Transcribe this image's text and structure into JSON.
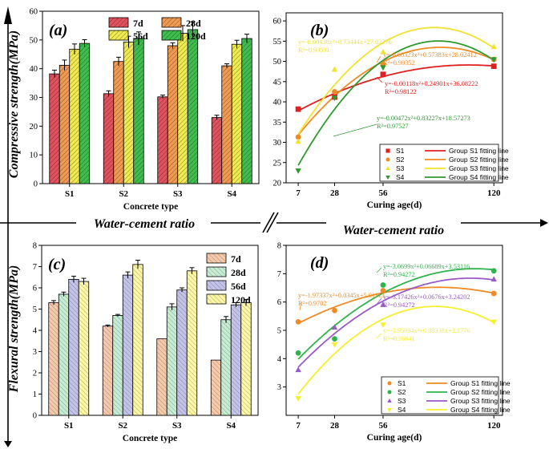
{
  "left_labels": {
    "top": "Compressive strength(MPa)",
    "bottom": "Flexural strength(MPa)"
  },
  "divider": {
    "left_label": "Water-cement ratio",
    "right_label": "Water-cement ratio"
  },
  "colors": {
    "d7": "#e0525e",
    "d28": "#f09a52",
    "d56": "#eeea50",
    "d120": "#3fbd4e",
    "c_d7": "#f6c9aa",
    "c_d28": "#c6ecd4",
    "c_d56": "#c3c3ea",
    "c_d120": "#fdf7a6",
    "b_S1": "#e02020",
    "b_S2": "#f08a24",
    "b_S3": "#f2e22e",
    "b_S4": "#2e9a2e",
    "d_S1": "#f08a24",
    "d_S2": "#2eb44a",
    "d_S3": "#9a5ac8",
    "d_S4": "#f6ef2e"
  },
  "chart_data": [
    {
      "id": "a",
      "panel": "(a)",
      "type": "bar",
      "categories": [
        "S1",
        "S2",
        "S3",
        "S4"
      ],
      "xlabel": "Concrete type",
      "ylabel": "Compressive strength(MPa)",
      "ylim": [
        0,
        60
      ],
      "yticks": [
        0,
        10,
        20,
        30,
        40,
        50,
        60
      ],
      "legend_position": "top-right",
      "series": [
        {
          "name": "7d",
          "values": [
            38.2,
            31.3,
            30.2,
            23.0
          ],
          "errors": [
            1.3,
            1.0,
            0.6,
            0.8
          ]
        },
        {
          "name": "28d",
          "values": [
            41.2,
            42.5,
            48.0,
            41.0
          ],
          "errors": [
            1.8,
            1.5,
            1.0,
            0.7
          ]
        },
        {
          "name": "56d",
          "values": [
            46.8,
            49.3,
            52.3,
            48.5
          ],
          "errors": [
            1.8,
            2.0,
            2.7,
            1.4
          ]
        },
        {
          "name": "120d",
          "values": [
            48.8,
            50.5,
            53.6,
            50.5
          ],
          "errors": [
            1.3,
            2.3,
            2.7,
            1.5
          ]
        }
      ]
    },
    {
      "id": "b",
      "panel": "(b)",
      "type": "scatter",
      "xlabel": "Curing age(d)",
      "ylabel": "",
      "xlim": [
        0,
        125
      ],
      "ylim": [
        20,
        62
      ],
      "xticks": [
        7,
        28,
        56,
        120
      ],
      "yticks": [
        20,
        25,
        30,
        35,
        40,
        45,
        50,
        55,
        60
      ],
      "legend_position": "bottom-right",
      "series": [
        {
          "name": "S1",
          "fit_name": "Group S1 fitting line",
          "x": [
            7,
            28,
            56,
            120
          ],
          "y": [
            38.2,
            41.2,
            46.8,
            48.8
          ],
          "coef": [
            -0.00118,
            0.24901,
            36.08222
          ]
        },
        {
          "name": "S2",
          "fit_name": "Group S2 fitting line",
          "x": [
            7,
            28,
            56,
            120
          ],
          "y": [
            31.3,
            42.5,
            49.3,
            50.5
          ],
          "coef": [
            -0.00323,
            0.57383,
            28.02412
          ]
        },
        {
          "name": "S3",
          "fit_name": "Group S3 fitting line",
          "x": [
            7,
            28,
            56,
            120
          ],
          "y": [
            30.2,
            48.0,
            52.3,
            53.6
          ],
          "coef": [
            -0.00438,
            0.73444,
            27.02276
          ]
        },
        {
          "name": "S4",
          "fit_name": "Group S4 fitting line",
          "x": [
            7,
            28,
            56,
            120
          ],
          "y": [
            23.0,
            41.0,
            48.5,
            50.5
          ],
          "coef": [
            -0.00472,
            0.83227,
            18.57273
          ]
        }
      ],
      "annotations": [
        {
          "series": "S3",
          "eq": "y=-0.00438x²+0.73444x+27.02276",
          "r2": "R²=0.93591"
        },
        {
          "series": "S2",
          "eq": "y=-0.00323x²+0.57383x+28.02412",
          "r2": "R²=0.99352"
        },
        {
          "series": "S1",
          "eq": "y=-0.00118x²+0.24901x+36.08222",
          "r2": "R²=0.98122"
        },
        {
          "series": "S4",
          "eq": "y=-0.00472x²+0.83227x+18.57273",
          "r2": "R²=0.97527"
        }
      ]
    },
    {
      "id": "c",
      "panel": "(c)",
      "type": "bar",
      "categories": [
        "S1",
        "S2",
        "S3",
        "S4"
      ],
      "xlabel": "Concrete type",
      "ylabel": "Flexural strength(MPa)",
      "ylim": [
        0,
        8
      ],
      "yticks": [
        0,
        1,
        2,
        3,
        4,
        5,
        6,
        7,
        8
      ],
      "legend_position": "top-right",
      "series": [
        {
          "name": "7d",
          "values": [
            5.3,
            4.2,
            3.6,
            2.6
          ],
          "errors": [
            0.1,
            0.05,
            0,
            0
          ]
        },
        {
          "name": "28d",
          "values": [
            5.7,
            4.7,
            5.1,
            4.5
          ],
          "errors": [
            0.1,
            0.05,
            0.15,
            0.15
          ]
        },
        {
          "name": "56d",
          "values": [
            6.4,
            6.6,
            5.9,
            5.2
          ],
          "errors": [
            0.15,
            0.15,
            0.1,
            0.1
          ]
        },
        {
          "name": "120d",
          "values": [
            6.3,
            7.1,
            6.8,
            5.3
          ],
          "errors": [
            0.15,
            0.2,
            0.15,
            0.15
          ]
        }
      ]
    },
    {
      "id": "d",
      "panel": "(d)",
      "type": "scatter",
      "xlabel": "Curing age(d)",
      "ylabel": "",
      "xlim": [
        0,
        125
      ],
      "ylim": [
        2,
        8
      ],
      "xticks": [
        7,
        28,
        56,
        120
      ],
      "yticks": [
        3,
        4,
        5,
        6,
        7,
        8
      ],
      "legend_position": "bottom-right",
      "series": [
        {
          "name": "S1",
          "fit_name": "Group S1 fitting line",
          "x": [
            7,
            28,
            56,
            120
          ],
          "y": [
            5.3,
            5.7,
            6.4,
            6.3
          ]
        },
        {
          "name": "S2",
          "fit_name": "Group S2 fitting line",
          "x": [
            7,
            28,
            56,
            120
          ],
          "y": [
            4.2,
            4.7,
            6.6,
            7.1
          ]
        },
        {
          "name": "S3",
          "fit_name": "Group S3 fitting line",
          "x": [
            7,
            28,
            56,
            120
          ],
          "y": [
            3.6,
            5.1,
            5.9,
            6.8
          ]
        },
        {
          "name": "S4",
          "fit_name": "Group S4 fitting line",
          "x": [
            7,
            28,
            56,
            120
          ],
          "y": [
            2.6,
            4.5,
            5.2,
            5.3
          ]
        }
      ],
      "annotations": [
        {
          "series": "S2",
          "eq": "y=-3.0699x²+0.06689x+3.53116",
          "r2": "R²=0.94272"
        },
        {
          "series": "S1",
          "eq": "y=-1.97337x²+0.0345x+5.01113",
          "r2": "R²=0.9702"
        },
        {
          "series": "S3",
          "eq": "y=-3.17426x²+0.0676x+3.24202",
          "r2": "R²=0.94272"
        },
        {
          "series": "S4",
          "eq": "y=-3.95694x²+0.08338x+2.1776",
          "r2": "R²=0.96641"
        }
      ]
    }
  ]
}
